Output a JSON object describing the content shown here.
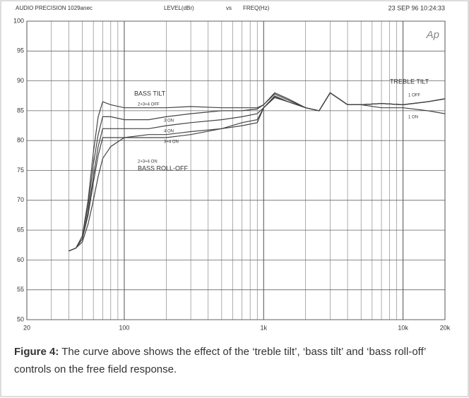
{
  "chart_data": {
    "type": "line",
    "header": {
      "left": "AUDIO PRECISION 1029anec",
      "y_label": "LEVEL(dBr)",
      "vs": "vs",
      "x_label": "FREQ(Hz)",
      "timestamp": "23 SEP 96 10:24:33",
      "logo": "Ap"
    },
    "x": [
      40,
      45,
      50,
      55,
      60,
      65,
      70,
      80,
      100,
      150,
      200,
      300,
      500,
      700,
      900,
      1000,
      1200,
      1500,
      2000,
      2500,
      3000,
      4000,
      5000,
      7000,
      10000,
      15000,
      20000
    ],
    "series": [
      {
        "name": "2+3+4 OFF",
        "color": "#444",
        "values": [
          61.5,
          62,
          64,
          70,
          78,
          84,
          86.5,
          86,
          85.5,
          85.5,
          85.5,
          85.7,
          85.5,
          85.5,
          85.5,
          86,
          88,
          87,
          85.5,
          85,
          88,
          86,
          86,
          86.2,
          86,
          86.5,
          87
        ]
      },
      {
        "name": "3 ON",
        "color": "#444",
        "values": [
          61.5,
          62,
          64,
          69,
          76,
          81,
          84,
          84,
          83.5,
          83.5,
          84,
          84.5,
          85,
          85,
          85.3,
          86,
          87.8,
          86.8,
          85.5,
          85,
          88,
          86,
          86,
          86.2,
          86,
          86.5,
          87
        ]
      },
      {
        "name": "4 ON",
        "color": "#444",
        "values": [
          61.5,
          62,
          63.5,
          68,
          74,
          79,
          82,
          82,
          82,
          82,
          82.5,
          83,
          83.5,
          84,
          84.5,
          85.5,
          87.5,
          86.5,
          85.5,
          85,
          88,
          86,
          86,
          86.2,
          86,
          86.5,
          87
        ]
      },
      {
        "name": "3+4 ON",
        "color": "#444",
        "values": [
          61.5,
          62,
          63.5,
          67.5,
          73,
          77.5,
          80.5,
          80.5,
          80.5,
          80.5,
          80.5,
          81,
          82,
          83,
          83.5,
          85.5,
          87.3,
          86.5,
          85.5,
          85,
          88,
          86,
          86,
          86.2,
          86,
          86.5,
          87
        ]
      },
      {
        "name": "2+3+4 ON",
        "color": "#444",
        "values": [
          61.5,
          62,
          63,
          66,
          70,
          74,
          77,
          79,
          80.5,
          81,
          81,
          81.5,
          82,
          82.5,
          83,
          85.5,
          87.2,
          86.5,
          85.5,
          85,
          88,
          86,
          86,
          86.2,
          86,
          86.5,
          87
        ]
      },
      {
        "name": "1 ON",
        "color": "#444",
        "values": [
          null,
          null,
          null,
          null,
          null,
          null,
          null,
          null,
          null,
          null,
          null,
          null,
          null,
          null,
          null,
          null,
          null,
          null,
          null,
          null,
          88,
          86,
          86,
          85.5,
          85.5,
          85,
          84.5
        ]
      }
    ],
    "annotations": [
      "BASS TILT",
      "BASS ROLL-OFF",
      "TREBLE TILT",
      "1 OFF"
    ],
    "xlim": [
      20,
      20000
    ],
    "log_x": true,
    "xticks": [
      20,
      100,
      {
        "value": 1000,
        "label": "1k"
      },
      {
        "value": 10000,
        "label": "10k"
      },
      {
        "value": 20000,
        "label": "20k"
      }
    ],
    "ylim": [
      50,
      100
    ],
    "yticks": [
      50,
      55,
      60,
      65,
      70,
      75,
      80,
      85,
      90,
      95,
      100
    ],
    "grid": true,
    "caption_label": "Figure 4:",
    "caption": "The curve above shows the effect of the ‘treble tilt’, ‘bass tilt’ and ‘bass roll-off’ controls on the free field response."
  }
}
